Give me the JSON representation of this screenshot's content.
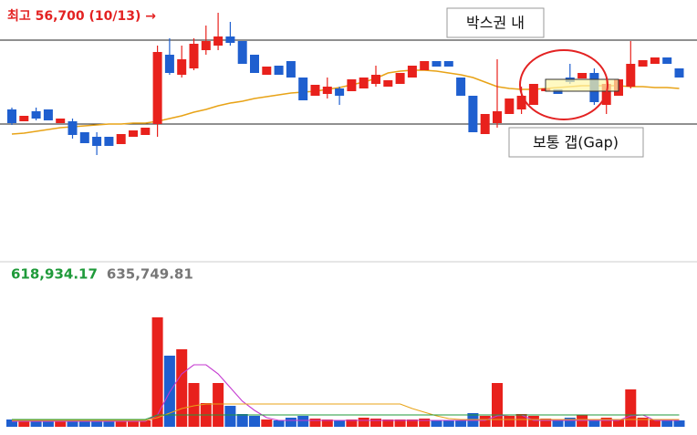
{
  "chart_data": [
    {
      "type": "candlestick",
      "annotation": "최고 56,700 (10/13) →",
      "box_label": "박스권 내",
      "gap_label": "보통 갭(Gap)",
      "box_lines": [
        55200,
        50600
      ],
      "ylim": [
        43150,
        57400
      ],
      "up_color": "#e8211c",
      "down_color": "#1f5fcf",
      "open": [
        51400,
        50750,
        51300,
        51400,
        50650,
        50750,
        50150,
        49900,
        49900,
        49500,
        49900,
        50000,
        50600,
        54400,
        53300,
        53650,
        54650,
        54900,
        55400,
        55150,
        54400,
        53300,
        53800,
        54050,
        53150,
        52150,
        52250,
        52550,
        52400,
        52550,
        52800,
        52650,
        52800,
        53150,
        53550,
        54050,
        54050,
        53150,
        52150,
        50050,
        50650,
        51150,
        51400,
        51650,
        52400,
        52500,
        53150,
        53100,
        53400,
        51650,
        52150,
        52650,
        53750,
        53900,
        54250,
        53650
      ],
      "high": [
        51500,
        51050,
        51500,
        51400,
        50900,
        50900,
        50150,
        50150,
        49900,
        50050,
        50250,
        50400,
        54900,
        55300,
        54900,
        55300,
        56000,
        56700,
        56200,
        55150,
        54400,
        53750,
        53800,
        54050,
        53150,
        52750,
        53150,
        52650,
        53050,
        53150,
        53800,
        53000,
        53400,
        53800,
        54050,
        54050,
        54050,
        53150,
        52150,
        51150,
        54150,
        52000,
        52650,
        52800,
        52550,
        52500,
        53900,
        53400,
        53650,
        53150,
        53050,
        55150,
        54100,
        54250,
        54250,
        53650
      ],
      "low": [
        50550,
        50750,
        50800,
        50800,
        50650,
        49800,
        49550,
        48900,
        49400,
        49500,
        49900,
        50000,
        49900,
        53300,
        53150,
        53550,
        54400,
        54650,
        54900,
        53900,
        53400,
        53300,
        53300,
        53150,
        51900,
        52150,
        52000,
        51650,
        52400,
        52550,
        52650,
        52650,
        52800,
        53150,
        53550,
        53750,
        53750,
        52150,
        50150,
        50050,
        50400,
        51150,
        51150,
        51650,
        52400,
        52250,
        52800,
        53100,
        51650,
        51150,
        52150,
        52550,
        53750,
        53900,
        53900,
        53150
      ],
      "close": [
        50650,
        51050,
        50900,
        50800,
        50900,
        50000,
        49550,
        49400,
        49400,
        50050,
        50250,
        50400,
        54550,
        53400,
        54150,
        55000,
        55150,
        55400,
        55050,
        53900,
        53400,
        53750,
        53300,
        53150,
        51900,
        52750,
        52650,
        52150,
        53050,
        53150,
        53300,
        53000,
        53400,
        53800,
        54050,
        53750,
        53750,
        52150,
        50150,
        51150,
        51300,
        52000,
        52150,
        52800,
        52550,
        52250,
        52900,
        53400,
        51800,
        52800,
        53050,
        53900,
        54100,
        54250,
        53900,
        53150
      ],
      "ma": {
        "color": "#e8a317",
        "values": [
          50050,
          50100,
          50200,
          50300,
          50400,
          50450,
          50500,
          50550,
          50600,
          50600,
          50650,
          50650,
          50750,
          50900,
          51050,
          51250,
          51400,
          51600,
          51750,
          51850,
          52000,
          52100,
          52200,
          52300,
          52350,
          52400,
          52500,
          52600,
          52750,
          52900,
          53100,
          53400,
          53500,
          53550,
          53550,
          53500,
          53400,
          53300,
          53150,
          52900,
          52650,
          52550,
          52500,
          52500,
          52550,
          52600,
          52650,
          52700,
          52700,
          52700,
          52700,
          52650,
          52650,
          52600,
          52600,
          52550
        ]
      }
    },
    {
      "type": "bar",
      "ylim": [
        0,
        6400000
      ],
      "legend_labels": [
        {
          "label": "618,934.17",
          "color": "#1f9a3a"
        },
        {
          "label": "635,749.81",
          "color": "#777777"
        }
      ],
      "values": [
        400000,
        300000,
        400000,
        300000,
        300000,
        350000,
        300000,
        400000,
        350000,
        300000,
        300000,
        350000,
        6000000,
        3900000,
        4250000,
        2400000,
        1300000,
        2400000,
        1150000,
        700000,
        600000,
        400000,
        350000,
        500000,
        600000,
        450000,
        400000,
        350000,
        400000,
        500000,
        450000,
        400000,
        400000,
        400000,
        450000,
        350000,
        350000,
        350000,
        750000,
        600000,
        2400000,
        600000,
        700000,
        600000,
        450000,
        400000,
        500000,
        650000,
        400000,
        500000,
        400000,
        2050000,
        500000,
        400000,
        400000,
        350000
      ],
      "lines": [
        {
          "color": "#c43ad0",
          "values": [
            300000,
            300000,
            300000,
            300000,
            300000,
            300000,
            300000,
            300000,
            300000,
            300000,
            300000,
            300000,
            650000,
            1900000,
            2900000,
            3400000,
            3400000,
            2900000,
            2150000,
            1400000,
            900000,
            500000,
            350000,
            350000,
            350000,
            350000,
            350000,
            350000,
            350000,
            350000,
            350000,
            350000,
            350000,
            350000,
            350000,
            350000,
            350000,
            350000,
            350000,
            350000,
            600000,
            650000,
            650000,
            350000,
            350000,
            350000,
            350000,
            350000,
            350000,
            350000,
            350000,
            600000,
            650000,
            350000,
            350000,
            350000
          ]
        },
        {
          "color": "#e8a317",
          "values": [
            350000,
            350000,
            350000,
            350000,
            350000,
            350000,
            350000,
            350000,
            350000,
            350000,
            350000,
            350000,
            500000,
            750000,
            1000000,
            1150000,
            1250000,
            1250000,
            1250000,
            1250000,
            1250000,
            1250000,
            1250000,
            1250000,
            1250000,
            1250000,
            1250000,
            1250000,
            1250000,
            1250000,
            1250000,
            1250000,
            1250000,
            1000000,
            800000,
            600000,
            450000,
            400000,
            400000,
            400000,
            400000,
            400000,
            400000,
            400000,
            400000,
            400000,
            400000,
            400000,
            400000,
            400000,
            400000,
            400000,
            400000,
            400000,
            400000,
            400000
          ]
        },
        {
          "color": "#1f9a3a",
          "values": [
            400000,
            400000,
            400000,
            400000,
            400000,
            400000,
            400000,
            400000,
            400000,
            400000,
            400000,
            400000,
            650000,
            650000,
            650000,
            650000,
            650000,
            650000,
            650000,
            650000,
            650000,
            650000,
            650000,
            650000,
            650000,
            650000,
            650000,
            650000,
            650000,
            650000,
            650000,
            650000,
            650000,
            650000,
            650000,
            650000,
            650000,
            650000,
            650000,
            650000,
            650000,
            650000,
            650000,
            650000,
            650000,
            650000,
            650000,
            650000,
            650000,
            650000,
            650000,
            650000,
            650000,
            650000,
            650000,
            650000
          ]
        }
      ]
    }
  ]
}
